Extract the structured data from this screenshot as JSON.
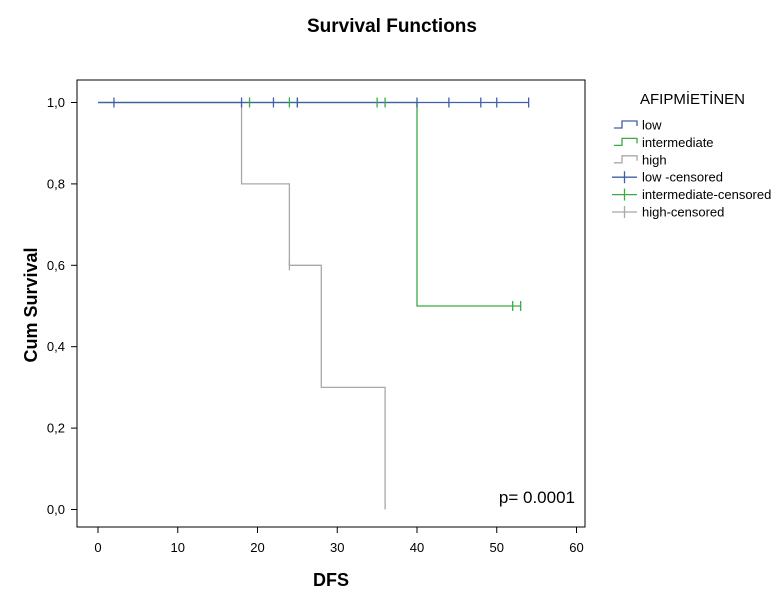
{
  "chart_data": {
    "type": "line",
    "title": "Survival Functions",
    "xlabel": "DFS",
    "ylabel": "Cum Survival",
    "xlim": [
      0,
      60
    ],
    "ylim": [
      0,
      1
    ],
    "x_ticks": [
      0,
      10,
      20,
      30,
      40,
      50,
      60
    ],
    "x_tick_labels": [
      "0",
      "10",
      "20",
      "30",
      "40",
      "50",
      "60"
    ],
    "y_ticks": [
      0,
      0.2,
      0.4,
      0.6,
      0.8,
      1.0
    ],
    "y_tick_labels": [
      "0,0",
      "0,2",
      "0,4",
      "0,6",
      "0,8",
      "1,0"
    ],
    "grid": false,
    "annotation": "p= 0.0001",
    "legend_title": "AFIPMİETİNEN",
    "legend_position": "right",
    "series": [
      {
        "name": "low",
        "color": "#3f5fa8",
        "steps": [
          [
            0,
            1.0
          ],
          [
            54,
            1.0
          ]
        ],
        "censored": [
          [
            2,
            1.0
          ],
          [
            18,
            1.0
          ],
          [
            22,
            1.0
          ],
          [
            25,
            1.0
          ],
          [
            40,
            1.0
          ],
          [
            44,
            1.0
          ],
          [
            48,
            1.0
          ],
          [
            50,
            1.0
          ],
          [
            54,
            1.0
          ]
        ]
      },
      {
        "name": "intermediate",
        "color": "#3aab45",
        "steps": [
          [
            0,
            1.0
          ],
          [
            40,
            1.0
          ],
          [
            40,
            0.5
          ],
          [
            53,
            0.5
          ]
        ],
        "censored": [
          [
            19,
            1.0
          ],
          [
            24,
            1.0
          ],
          [
            25,
            1.0
          ],
          [
            35,
            1.0
          ],
          [
            36,
            1.0
          ],
          [
            52,
            0.5
          ],
          [
            53,
            0.5
          ]
        ]
      },
      {
        "name": "high",
        "color": "#a8a8a8",
        "steps": [
          [
            0,
            1.0
          ],
          [
            18,
            1.0
          ],
          [
            18,
            0.8
          ],
          [
            24,
            0.8
          ],
          [
            24,
            0.6
          ],
          [
            28,
            0.6
          ],
          [
            28,
            0.3
          ],
          [
            36,
            0.3
          ],
          [
            36,
            0.0
          ]
        ],
        "censored": [
          [
            24,
            0.6
          ]
        ]
      }
    ],
    "legend": [
      "low",
      "intermediate",
      "high",
      "low -censored",
      "intermediate-censored",
      "high-censored"
    ]
  }
}
